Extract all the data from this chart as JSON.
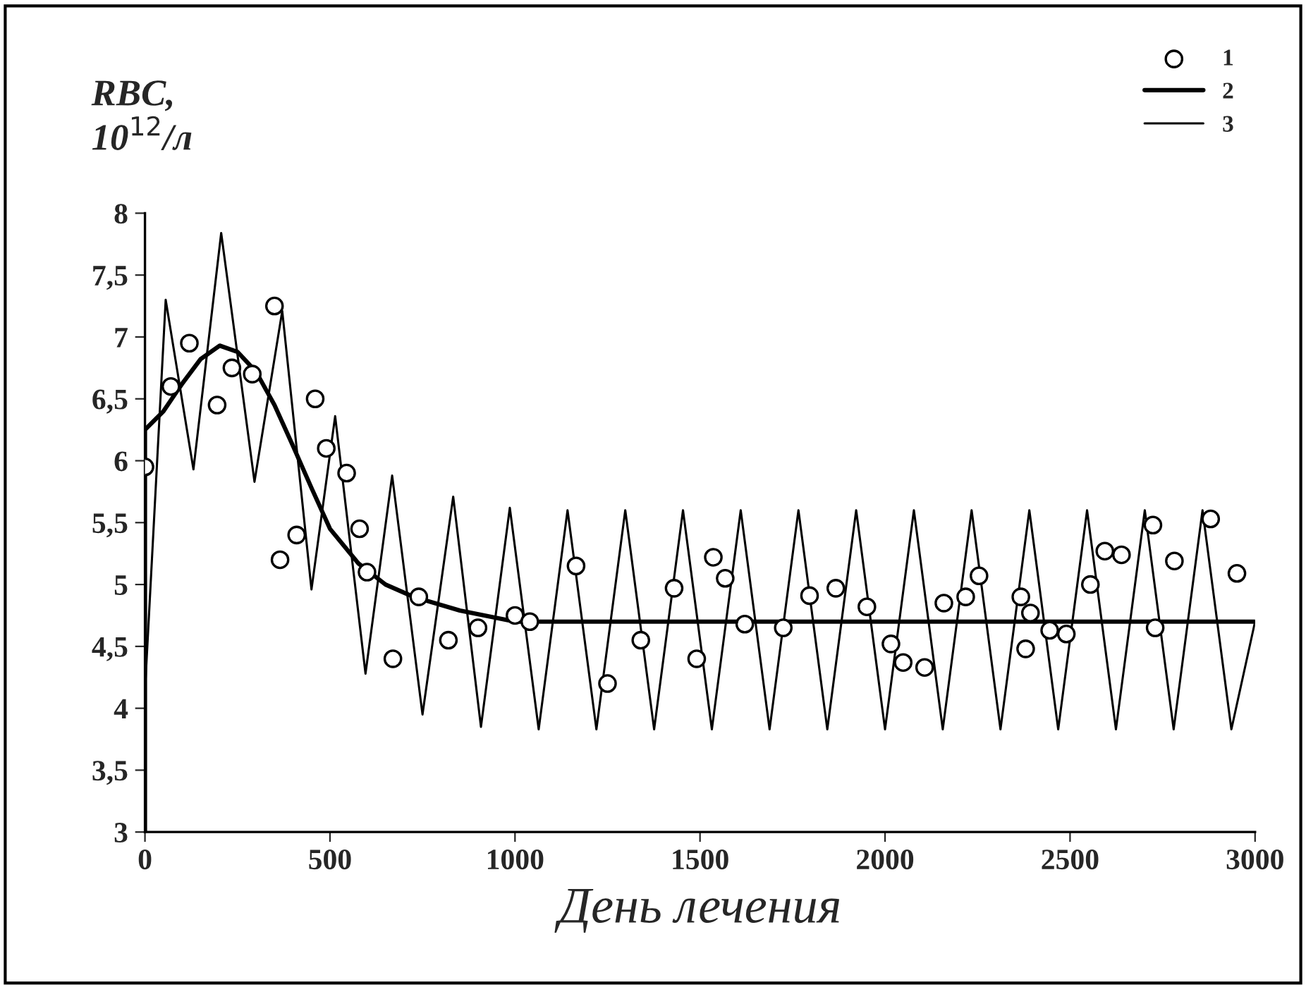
{
  "chart_data": {
    "type": "line",
    "ylabel": "RBC,\n10$^{12}$/л",
    "xlabel": "День лечения",
    "xlim": [
      0,
      3000
    ],
    "xticks": [
      0,
      500,
      1000,
      1500,
      2000,
      2500,
      3000
    ],
    "ylim": [
      3,
      8
    ],
    "yticks": [
      3,
      {
        "value": 3.5,
        "label": "3,5"
      },
      4,
      {
        "value": 4.5,
        "label": "4,5"
      },
      5,
      {
        "value": 5.5,
        "label": "5,5"
      },
      6,
      {
        "value": 6.5,
        "label": "6,5"
      },
      7,
      {
        "value": 7.5,
        "label": "7,5"
      },
      8
    ],
    "grid": false,
    "legend": "top right",
    "series": [
      {
        "name": "1",
        "type": "scatter",
        "marker": "circle",
        "color": "#000000",
        "x": [
          0,
          70,
          120,
          195,
          235,
          290,
          350,
          365,
          410,
          460,
          490,
          545,
          580,
          600,
          670,
          740,
          820,
          900,
          1000,
          1040,
          1165,
          1250,
          1340,
          1430,
          1491,
          1536,
          1568,
          1621,
          1725,
          1796,
          1867,
          1951,
          2016,
          2049,
          2107,
          2159,
          2218,
          2254,
          2367,
          2380,
          2393,
          2445,
          2490,
          2555,
          2594,
          2639,
          2724,
          2730,
          2782,
          2880,
          2951
        ],
        "values": [
          5.95,
          6.6,
          6.95,
          6.45,
          6.75,
          6.7,
          7.25,
          5.2,
          5.4,
          6.5,
          6.1,
          5.9,
          5.45,
          5.1,
          4.4,
          4.9,
          4.55,
          4.65,
          4.75,
          4.7,
          5.15,
          4.2,
          4.55,
          4.97,
          4.4,
          5.22,
          5.05,
          4.68,
          4.65,
          4.91,
          4.97,
          4.82,
          4.52,
          4.37,
          4.33,
          4.85,
          4.9,
          5.07,
          4.9,
          4.48,
          4.77,
          4.63,
          4.6,
          5.0,
          5.27,
          5.24,
          5.48,
          4.65,
          5.19,
          5.53,
          5.09
        ]
      },
      {
        "name": "2",
        "color": "#000000",
        "line_style": "solid",
        "x": [
          0,
          0,
          50,
          100,
          150,
          202,
          250,
          300,
          350,
          400,
          450,
          500,
          577,
          650,
          726,
          851,
          1000,
          3000
        ],
        "values": [
          3,
          6.25,
          6.4,
          6.62,
          6.82,
          6.93,
          6.88,
          6.72,
          6.45,
          6.12,
          5.78,
          5.45,
          5.17,
          5.0,
          4.9,
          4.79,
          4.7,
          4.7
        ]
      },
      {
        "name": "3",
        "color": "#000000",
        "line_style": "solid",
        "x": [
          0,
          0,
          56,
          131,
          206,
          296,
          371,
          450,
          514,
          596,
          668,
          750,
          833,
          908,
          986,
          1064,
          1142,
          1220,
          1298,
          1376,
          1454,
          1532,
          1610,
          1688,
          1766,
          1844,
          1922,
          2000,
          2078,
          2156,
          2234,
          2312,
          2390,
          2468,
          2546,
          2624,
          2702,
          2780,
          2858,
          2936,
          3000
        ],
        "values": [
          3,
          4.14,
          7.3,
          5.93,
          7.84,
          5.83,
          7.21,
          4.96,
          6.36,
          4.28,
          5.88,
          3.95,
          5.71,
          3.85,
          5.62,
          3.83,
          5.6,
          3.83,
          5.6,
          3.83,
          5.6,
          3.83,
          5.6,
          3.83,
          5.6,
          3.83,
          5.6,
          3.83,
          5.6,
          3.83,
          5.6,
          3.83,
          5.6,
          3.83,
          5.6,
          3.83,
          5.6,
          3.83,
          5.6,
          3.83,
          4.7
        ]
      }
    ]
  }
}
